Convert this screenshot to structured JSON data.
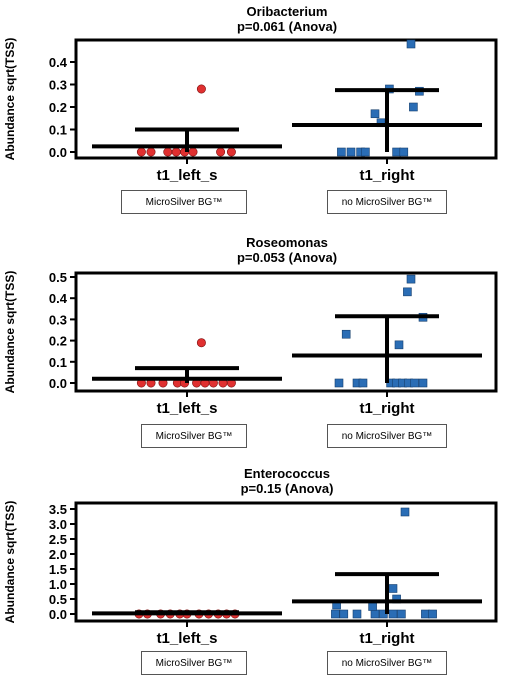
{
  "chart_data": [
    {
      "type": "scatter",
      "title": "Oribacterium",
      "subtitle": "p=0.061 (Anova)",
      "ylabel": "Abundance sqrt(TSS)",
      "ylim": [
        0,
        0.5
      ],
      "yticks": [
        "0.0",
        "0.1",
        "0.2",
        "0.3",
        "0.4"
      ],
      "categories": [
        "t1_left_s",
        "t1_right"
      ],
      "category_notes": [
        "MicroSilver BG™",
        "no MicroSilver BG™"
      ],
      "means": [
        0.025,
        0.12
      ],
      "upper": [
        0.1,
        0.275
      ],
      "points": [
        {
          "group": 0,
          "x": [
            -0.38,
            -0.3,
            -0.16,
            -0.09,
            -0.02,
            0.05,
            0.28,
            0.37,
            0.12
          ],
          "y": [
            0,
            0,
            0,
            0,
            0,
            0,
            0,
            0,
            0.28
          ]
        },
        {
          "group": 1,
          "x": [
            -0.38,
            -0.3,
            -0.22,
            -0.1,
            -0.05,
            0.02,
            0.08,
            0.14,
            0.27,
            0.22,
            -0.18,
            0.2
          ],
          "y": [
            0,
            0,
            0,
            0.17,
            0.13,
            0.28,
            0,
            0,
            0.27,
            0.2,
            0,
            0.48
          ]
        }
      ],
      "colors": [
        "#e03030",
        "#2a6db5"
      ],
      "markers": [
        "circle",
        "square"
      ]
    },
    {
      "type": "scatter",
      "title": "Roseomonas",
      "subtitle": "p=0.053 (Anova)",
      "ylabel": "Abundance sqrt(TSS)",
      "ylim": [
        0,
        0.5
      ],
      "yticks": [
        "0.0",
        "0.1",
        "0.2",
        "0.3",
        "0.4",
        "0.5"
      ],
      "categories": [
        "t1_left_s",
        "t1_right"
      ],
      "category_notes": [
        "MicroSilver BG™",
        "no MicroSilver BG™"
      ],
      "means": [
        0.02,
        0.13
      ],
      "upper": [
        0.07,
        0.315
      ],
      "points": [
        {
          "group": 0,
          "x": [
            -0.38,
            -0.3,
            -0.2,
            -0.08,
            -0.02,
            0.08,
            0.15,
            0.22,
            0.3,
            0.37,
            0.12
          ],
          "y": [
            0,
            0,
            0,
            0,
            0,
            0,
            0,
            0,
            0,
            0,
            0.19
          ]
        },
        {
          "group": 1,
          "x": [
            -0.4,
            -0.25,
            -0.2,
            0.03,
            0.08,
            0.13,
            0.18,
            0.23,
            0.3,
            -0.34,
            0.1,
            0.17,
            0.2,
            0.3
          ],
          "y": [
            0,
            0,
            0,
            0,
            0,
            0,
            0,
            0,
            0,
            0.23,
            0.18,
            0.43,
            0.49,
            0.31
          ]
        }
      ],
      "colors": [
        "#e03030",
        "#2a6db5"
      ],
      "markers": [
        "circle",
        "square"
      ]
    },
    {
      "type": "scatter",
      "title": "Enterococcus",
      "subtitle": "p=0.15 (Anova)",
      "ylabel": "Abundance sqrt(TSS)",
      "ylim": [
        0,
        3.5
      ],
      "yticks": [
        "0.0",
        "0.5",
        "1.0",
        "1.5",
        "2.0",
        "2.5",
        "3.0",
        "3.5"
      ],
      "categories": [
        "t1_left_s",
        "t1_right"
      ],
      "category_notes": [
        "MicroSilver BG™",
        "no MicroSilver BG™"
      ],
      "means": [
        0.02,
        0.42
      ],
      "upper": [
        0.06,
        1.33
      ],
      "points": [
        {
          "group": 0,
          "x": [
            -0.4,
            -0.33,
            -0.22,
            -0.14,
            -0.06,
            0.0,
            0.1,
            0.18,
            0.26,
            0.33,
            0.4
          ],
          "y": [
            0,
            0,
            0,
            0,
            0,
            0,
            0,
            0,
            0,
            0,
            0
          ]
        },
        {
          "group": 1,
          "x": [
            -0.43,
            -0.36,
            -0.25,
            -0.1,
            -0.03,
            0.05,
            0.12,
            0.32,
            0.38,
            -0.42,
            -0.12,
            0.05,
            0.08,
            0.15
          ],
          "y": [
            0,
            0,
            0,
            0,
            0,
            0,
            0,
            0,
            0,
            0.3,
            0.25,
            0.85,
            0.5,
            3.4
          ]
        }
      ],
      "colors": [
        "#e03030",
        "#2a6db5"
      ],
      "markers": [
        "circle",
        "square"
      ]
    }
  ]
}
